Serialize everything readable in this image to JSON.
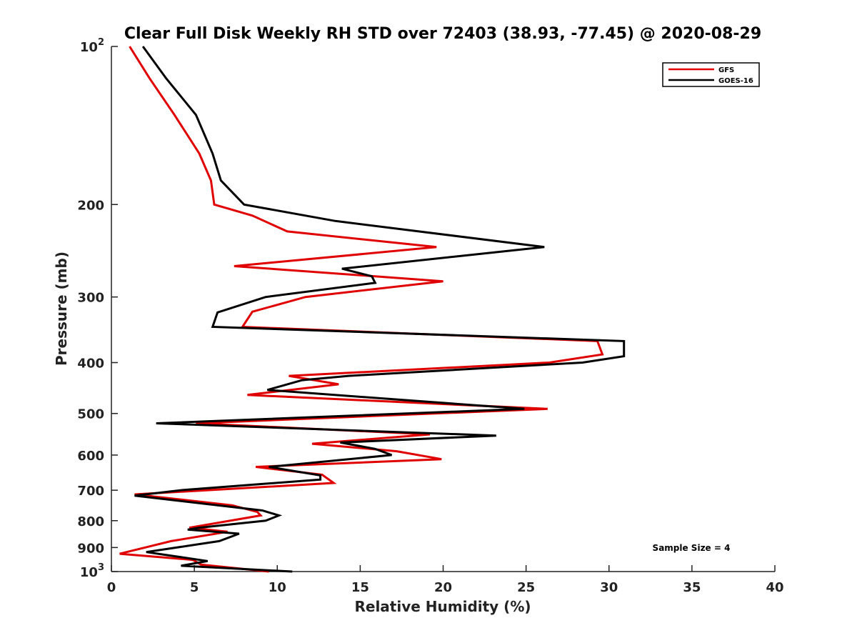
{
  "chart_data": {
    "type": "line",
    "title": "Clear Full Disk Weekly RH STD over 72403 (38.93, -77.45) @ 2020-08-29",
    "xlabel": "Relative Humidity (%)",
    "ylabel": "Pressure (mb)",
    "xlim": [
      0,
      40
    ],
    "ylim": [
      100,
      1000
    ],
    "y_scale": "log",
    "y_reversed": true,
    "x_ticks": [
      "0",
      "5",
      "10",
      "15",
      "20",
      "25",
      "30",
      "35",
      "40"
    ],
    "y_ticks": [
      {
        "value": 100,
        "base": "10",
        "exp": "2"
      },
      {
        "value": 200,
        "label": "200"
      },
      {
        "value": 300,
        "label": "300"
      },
      {
        "value": 400,
        "label": "400"
      },
      {
        "value": 500,
        "label": "500"
      },
      {
        "value": 600,
        "label": "600"
      },
      {
        "value": 700,
        "label": "700"
      },
      {
        "value": 800,
        "label": "800"
      },
      {
        "value": 900,
        "label": "900"
      },
      {
        "value": 1000,
        "base": "10",
        "exp": "3"
      }
    ],
    "legend_position": "top-right",
    "series": [
      {
        "name": "GFS",
        "color": "#e00000",
        "points": [
          [
            1.1,
            100
          ],
          [
            2.3,
            115
          ],
          [
            3.8,
            135
          ],
          [
            5.3,
            160
          ],
          [
            6.0,
            180
          ],
          [
            6.2,
            200
          ],
          [
            8.5,
            210
          ],
          [
            10.6,
            225
          ],
          [
            19.6,
            241
          ],
          [
            7.4,
            262
          ],
          [
            20.0,
            280
          ],
          [
            11.7,
            300
          ],
          [
            8.5,
            320
          ],
          [
            7.9,
            342
          ],
          [
            29.3,
            364
          ],
          [
            29.6,
            386
          ],
          [
            26.4,
            400
          ],
          [
            10.7,
            424
          ],
          [
            13.7,
            440
          ],
          [
            8.2,
            461
          ],
          [
            26.3,
            490
          ],
          [
            5.1,
            522
          ],
          [
            19.2,
            548
          ],
          [
            12.1,
            571
          ],
          [
            17.2,
            590
          ],
          [
            19.9,
            611
          ],
          [
            8.7,
            632
          ],
          [
            12.7,
            654
          ],
          [
            13.4,
            678
          ],
          [
            1.4,
            713
          ],
          [
            7.3,
            748
          ],
          [
            8.8,
            770
          ],
          [
            9.0,
            782
          ],
          [
            4.7,
            825
          ],
          [
            7.0,
            840
          ],
          [
            3.6,
            875
          ],
          [
            0.5,
            925
          ],
          [
            4.9,
            950
          ],
          [
            5.4,
            970
          ],
          [
            9.5,
            1000
          ]
        ]
      },
      {
        "name": "GOES-16",
        "color": "#000000",
        "points": [
          [
            1.9,
            100
          ],
          [
            3.3,
            115
          ],
          [
            5.1,
            135
          ],
          [
            6.1,
            160
          ],
          [
            6.6,
            180
          ],
          [
            8.0,
            200
          ],
          [
            13.5,
            215
          ],
          [
            26.1,
            241
          ],
          [
            13.9,
            265
          ],
          [
            15.7,
            274
          ],
          [
            15.9,
            282
          ],
          [
            9.3,
            300
          ],
          [
            6.4,
            321
          ],
          [
            6.1,
            342
          ],
          [
            30.9,
            364
          ],
          [
            30.9,
            389
          ],
          [
            28.4,
            400
          ],
          [
            14.3,
            424
          ],
          [
            11.5,
            432
          ],
          [
            9.4,
            451
          ],
          [
            24.9,
            490
          ],
          [
            2.7,
            522
          ],
          [
            23.2,
            551
          ],
          [
            13.8,
            568
          ],
          [
            15.9,
            584
          ],
          [
            16.9,
            600
          ],
          [
            9.5,
            632
          ],
          [
            12.6,
            656
          ],
          [
            12.6,
            668
          ],
          [
            4.2,
            700
          ],
          [
            1.4,
            717
          ],
          [
            9.1,
            765
          ],
          [
            10.1,
            782
          ],
          [
            9.3,
            800
          ],
          [
            5.3,
            825
          ],
          [
            4.6,
            832
          ],
          [
            7.7,
            847
          ],
          [
            6.5,
            875
          ],
          [
            2.1,
            918
          ],
          [
            5.8,
            955
          ],
          [
            4.2,
            975
          ],
          [
            10.9,
            1000
          ]
        ]
      }
    ],
    "annotation": "Sample Size = 4"
  }
}
